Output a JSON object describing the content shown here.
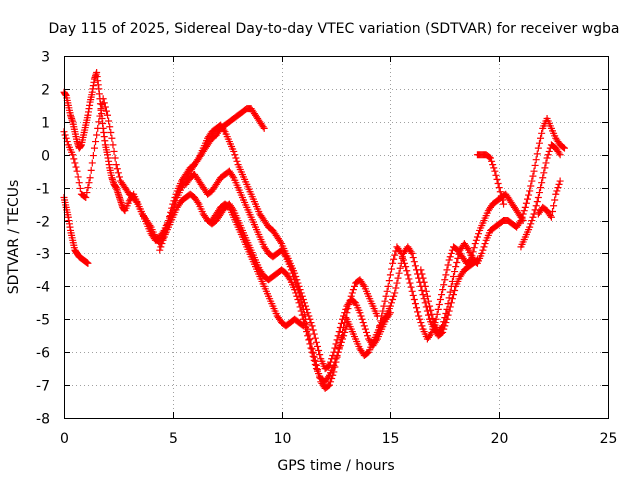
{
  "chart_data": {
    "type": "scatter",
    "title": "Day 115 of 2025, Sidereal Day-to-day VTEC variation (SDTVAR) for receiver wgba",
    "xlabel": "GPS time / hours",
    "ylabel": "SDTVAR / TECUs",
    "xlim": [
      0,
      25
    ],
    "ylim": [
      -8,
      3
    ],
    "xticks": [
      0,
      5,
      10,
      15,
      20,
      25
    ],
    "yticks": [
      -8,
      -7,
      -6,
      -5,
      -4,
      -3,
      -2,
      -1,
      0,
      1,
      2,
      3
    ],
    "grid": true,
    "marker": "plus",
    "color": "#ff0000",
    "series": [
      {
        "x": [
          0.0,
          0.1,
          0.2,
          0.3,
          0.4,
          0.5,
          0.6,
          0.7,
          0.8,
          0.9,
          1.0,
          1.1
        ],
        "y": [
          -1.3,
          -1.6,
          -1.9,
          -2.3,
          -2.6,
          -2.9,
          -3.0,
          -3.1,
          -3.15,
          -3.2,
          -3.25,
          -3.3
        ]
      },
      {
        "x": [
          0.0,
          0.1,
          0.2,
          0.3,
          0.4,
          0.5,
          0.6,
          0.7,
          0.8,
          0.9,
          1.0,
          1.1,
          1.2,
          1.3,
          1.4,
          1.5,
          1.6,
          1.7,
          1.8,
          1.9,
          2.0,
          2.1,
          2.2,
          2.3,
          2.4,
          2.5,
          2.6,
          2.7,
          2.8,
          3.0,
          3.2,
          3.4,
          3.6,
          3.8,
          4.0,
          4.2,
          4.4,
          4.6,
          4.8,
          5.0,
          5.2,
          5.4,
          5.6,
          5.8,
          6.0,
          6.2,
          6.4,
          6.6,
          6.8,
          7.0,
          7.2,
          7.4,
          7.6,
          7.8,
          8.0,
          8.2,
          8.4,
          8.6,
          8.8,
          9.0,
          9.2
        ],
        "y": [
          1.9,
          1.8,
          1.5,
          1.2,
          1.0,
          0.7,
          0.4,
          0.2,
          0.3,
          0.6,
          0.9,
          1.2,
          1.6,
          1.9,
          2.3,
          2.5,
          2.0,
          1.4,
          0.8,
          0.3,
          0.0,
          -0.4,
          -0.7,
          -0.9,
          -1.0,
          -1.2,
          -1.4,
          -1.6,
          -1.7,
          -1.4,
          -1.2,
          -1.5,
          -1.8,
          -2.1,
          -2.4,
          -2.6,
          -2.5,
          -2.3,
          -2.0,
          -1.7,
          -1.3,
          -1.0,
          -0.8,
          -0.5,
          -0.3,
          -0.1,
          0.1,
          0.3,
          0.5,
          0.6,
          0.8,
          0.9,
          1.0,
          1.1,
          1.2,
          1.3,
          1.4,
          1.4,
          1.2,
          1.0,
          0.8
        ]
      },
      {
        "x": [
          0.0,
          0.2,
          0.4,
          0.6,
          0.8,
          1.0,
          1.2,
          1.4,
          1.6,
          1.8,
          2.0,
          2.2,
          2.4,
          2.6,
          2.8,
          3.0,
          3.2,
          3.4,
          3.6,
          3.8,
          4.0,
          4.2,
          4.4,
          4.6,
          4.8,
          5.0,
          5.2,
          5.4,
          5.6,
          5.8,
          6.0,
          6.2,
          6.4,
          6.6,
          6.8,
          7.0,
          7.2,
          7.4,
          7.6,
          7.8,
          8.0,
          8.2,
          8.4,
          8.6,
          8.8,
          9.0,
          9.2,
          9.4,
          9.6,
          9.8,
          10.0,
          10.2,
          10.4,
          10.6,
          10.8,
          11.0,
          11.2,
          11.4,
          11.6,
          11.8,
          12.0,
          12.2,
          12.4,
          12.6,
          12.8,
          13.0
        ],
        "y": [
          0.7,
          0.3,
          0.0,
          -0.5,
          -1.2,
          -1.3,
          -0.7,
          0.2,
          1.0,
          1.7,
          1.2,
          0.5,
          -0.3,
          -0.8,
          -1.0,
          -1.2,
          -1.3,
          -1.5,
          -1.8,
          -2.0,
          -2.2,
          -2.5,
          -2.7,
          -2.5,
          -2.2,
          -1.9,
          -1.6,
          -1.4,
          -1.3,
          -1.2,
          -1.3,
          -1.5,
          -1.8,
          -2.0,
          -2.1,
          -2.0,
          -1.8,
          -1.6,
          -1.5,
          -1.7,
          -2.0,
          -2.3,
          -2.6,
          -2.9,
          -3.2,
          -3.5,
          -3.7,
          -3.8,
          -3.7,
          -3.6,
          -3.5,
          -3.6,
          -3.8,
          -4.1,
          -4.5,
          -5.0,
          -5.5,
          -6.0,
          -6.5,
          -6.8,
          -6.9,
          -6.7,
          -6.4,
          -6.0,
          -5.6,
          -5.2
        ]
      },
      {
        "x": [
          4.4,
          4.6,
          4.8,
          5.0,
          5.2,
          5.4,
          5.6,
          5.8,
          6.0,
          6.2,
          6.4,
          6.6,
          6.8,
          7.0,
          7.2,
          7.4,
          7.6,
          7.8,
          8.0,
          8.2,
          8.4,
          8.6,
          8.8,
          9.0,
          9.2,
          9.4,
          9.6,
          9.8,
          10.0,
          10.2,
          10.4,
          10.6,
          10.8,
          11.0,
          11.2,
          11.4,
          11.6,
          11.8,
          12.0,
          12.2,
          12.4,
          12.6,
          12.8,
          13.0,
          13.2,
          13.4,
          13.6,
          13.8,
          14.0,
          14.2,
          14.4,
          14.6,
          14.8,
          15.0
        ],
        "y": [
          -2.9,
          -2.5,
          -2.0,
          -1.5,
          -1.1,
          -0.8,
          -0.6,
          -0.4,
          -0.3,
          -0.1,
          0.2,
          0.5,
          0.7,
          0.8,
          0.9,
          0.7,
          0.4,
          0.1,
          -0.3,
          -0.6,
          -0.9,
          -1.2,
          -1.5,
          -1.8,
          -2.0,
          -2.2,
          -2.3,
          -2.5,
          -2.7,
          -3.0,
          -3.3,
          -3.6,
          -4.0,
          -4.4,
          -4.8,
          -5.2,
          -5.7,
          -6.2,
          -6.5,
          -6.4,
          -6.0,
          -5.5,
          -5.0,
          -4.6,
          -4.4,
          -4.5,
          -4.8,
          -5.2,
          -5.6,
          -5.8,
          -5.6,
          -5.3,
          -5.0,
          -4.8
        ]
      },
      {
        "x": [
          5.6,
          5.8,
          6.0,
          6.2,
          6.4,
          6.6,
          6.8,
          7.0,
          7.2,
          7.4,
          7.6,
          7.8,
          8.0,
          8.2,
          8.4,
          8.6,
          8.8,
          9.0,
          9.2,
          9.4,
          9.6,
          9.8,
          10.0,
          10.2,
          10.4,
          10.6,
          10.8,
          11.0,
          11.2,
          11.4,
          11.6,
          11.8,
          12.0,
          12.2,
          12.4,
          12.6,
          12.8,
          13.0,
          13.2,
          13.4,
          13.6,
          13.8,
          14.0,
          14.2,
          14.4
        ],
        "y": [
          -0.9,
          -0.7,
          -0.6,
          -0.8,
          -1.0,
          -1.2,
          -1.1,
          -0.9,
          -0.7,
          -0.6,
          -0.5,
          -0.7,
          -1.0,
          -1.3,
          -1.6,
          -1.9,
          -2.2,
          -2.5,
          -2.8,
          -3.0,
          -3.1,
          -3.0,
          -2.9,
          -3.1,
          -3.4,
          -3.8,
          -4.2,
          -4.7,
          -5.3,
          -5.9,
          -6.4,
          -6.9,
          -7.1,
          -7.0,
          -6.6,
          -6.0,
          -5.4,
          -4.8,
          -4.3,
          -3.9,
          -3.8,
          -4.0,
          -4.3,
          -4.6,
          -4.9
        ]
      },
      {
        "x": [
          6.8,
          7.0,
          7.2,
          7.4,
          7.6,
          7.8,
          8.0,
          8.2,
          8.4,
          8.6,
          8.8,
          9.0,
          9.2,
          9.4,
          9.6,
          9.8,
          10.0,
          10.2,
          10.4,
          10.6,
          10.8,
          11.0
        ],
        "y": [
          -2.0,
          -1.8,
          -1.6,
          -1.5,
          -1.6,
          -1.9,
          -2.2,
          -2.5,
          -2.8,
          -3.1,
          -3.4,
          -3.7,
          -4.0,
          -4.3,
          -4.6,
          -4.9,
          -5.1,
          -5.2,
          -5.1,
          -5.0,
          -5.1,
          -5.2
        ]
      },
      {
        "x": [
          13.0,
          13.2,
          13.4,
          13.6,
          13.8,
          14.0,
          14.2,
          14.4,
          14.6,
          14.8,
          15.0,
          15.2,
          15.4,
          15.6,
          15.8,
          16.0,
          16.2,
          16.4,
          16.6,
          16.8,
          17.0,
          17.2,
          17.4,
          17.6,
          17.8,
          18.0,
          18.2,
          18.4,
          18.6,
          18.8,
          19.0
        ],
        "y": [
          -5.0,
          -5.3,
          -5.6,
          -5.9,
          -6.1,
          -6.0,
          -5.7,
          -5.4,
          -5.1,
          -4.9,
          -4.6,
          -4.2,
          -3.6,
          -3.0,
          -2.8,
          -3.0,
          -3.5,
          -4.0,
          -4.5,
          -5.0,
          -5.3,
          -5.5,
          -5.4,
          -5.0,
          -4.5,
          -4.0,
          -3.7,
          -3.5,
          -3.4,
          -3.3,
          -3.2
        ]
      },
      {
        "x": [
          14.5,
          14.7,
          14.9,
          15.1,
          15.3,
          15.5,
          15.7,
          15.9,
          16.1,
          16.3,
          16.5,
          16.7,
          16.9,
          17.1,
          17.3,
          17.5,
          17.7,
          17.9,
          18.1,
          18.3,
          18.5,
          18.7,
          18.9,
          19.1,
          19.3,
          19.5,
          19.7,
          19.9,
          20.1,
          20.3,
          20.5,
          20.7,
          20.9,
          21.1
        ],
        "y": [
          -5.2,
          -4.6,
          -4.0,
          -3.3,
          -2.8,
          -3.0,
          -3.4,
          -3.9,
          -4.4,
          -4.9,
          -5.3,
          -5.6,
          -5.4,
          -5.0,
          -4.4,
          -3.8,
          -3.2,
          -2.8,
          -2.9,
          -3.1,
          -3.3,
          -3.2,
          -2.7,
          -2.3,
          -2.0,
          -1.7,
          -1.5,
          -1.4,
          -1.3,
          -1.2,
          -1.4,
          -1.6,
          -1.8,
          -2.0
        ]
      },
      {
        "x": [
          16.4,
          16.6,
          16.8,
          17.0,
          17.2,
          17.4,
          17.6,
          17.8,
          18.0,
          18.2,
          18.4,
          18.6,
          18.8,
          19.0,
          19.2,
          19.4,
          19.6,
          19.8,
          20.0,
          20.2,
          20.4,
          20.6,
          20.8,
          21.0,
          21.2,
          21.4,
          21.6,
          21.8,
          22.0,
          22.2,
          22.4,
          22.6,
          22.8,
          23.0
        ],
        "y": [
          -3.5,
          -4.0,
          -4.6,
          -5.1,
          -5.4,
          -5.2,
          -4.7,
          -4.0,
          -3.4,
          -2.9,
          -2.7,
          -2.9,
          -3.2,
          -3.3,
          -3.0,
          -2.6,
          -2.3,
          -2.2,
          -2.1,
          -2.0,
          -2.0,
          -2.1,
          -2.2,
          -2.0,
          -1.6,
          -1.1,
          -0.5,
          0.2,
          0.8,
          1.1,
          0.8,
          0.5,
          0.3,
          0.2
        ]
      },
      {
        "x": [
          19.0,
          19.2,
          19.4,
          19.6,
          19.8,
          20.0,
          20.2
        ],
        "y": [
          0.0,
          0.0,
          0.0,
          -0.1,
          -0.5,
          -1.0,
          -1.5
        ]
      },
      {
        "x": [
          21.0,
          21.2,
          21.4,
          21.6,
          21.8,
          22.0,
          22.2,
          22.4,
          22.6,
          22.8
        ],
        "y": [
          -2.8,
          -2.5,
          -2.2,
          -1.8,
          -1.3,
          -0.7,
          -0.1,
          0.3,
          0.2,
          0.0
        ]
      },
      {
        "x": [
          21.8,
          22.0,
          22.2,
          22.4,
          22.6,
          22.8
        ],
        "y": [
          -1.8,
          -1.6,
          -1.7,
          -1.9,
          -1.2,
          -0.8
        ]
      }
    ]
  }
}
